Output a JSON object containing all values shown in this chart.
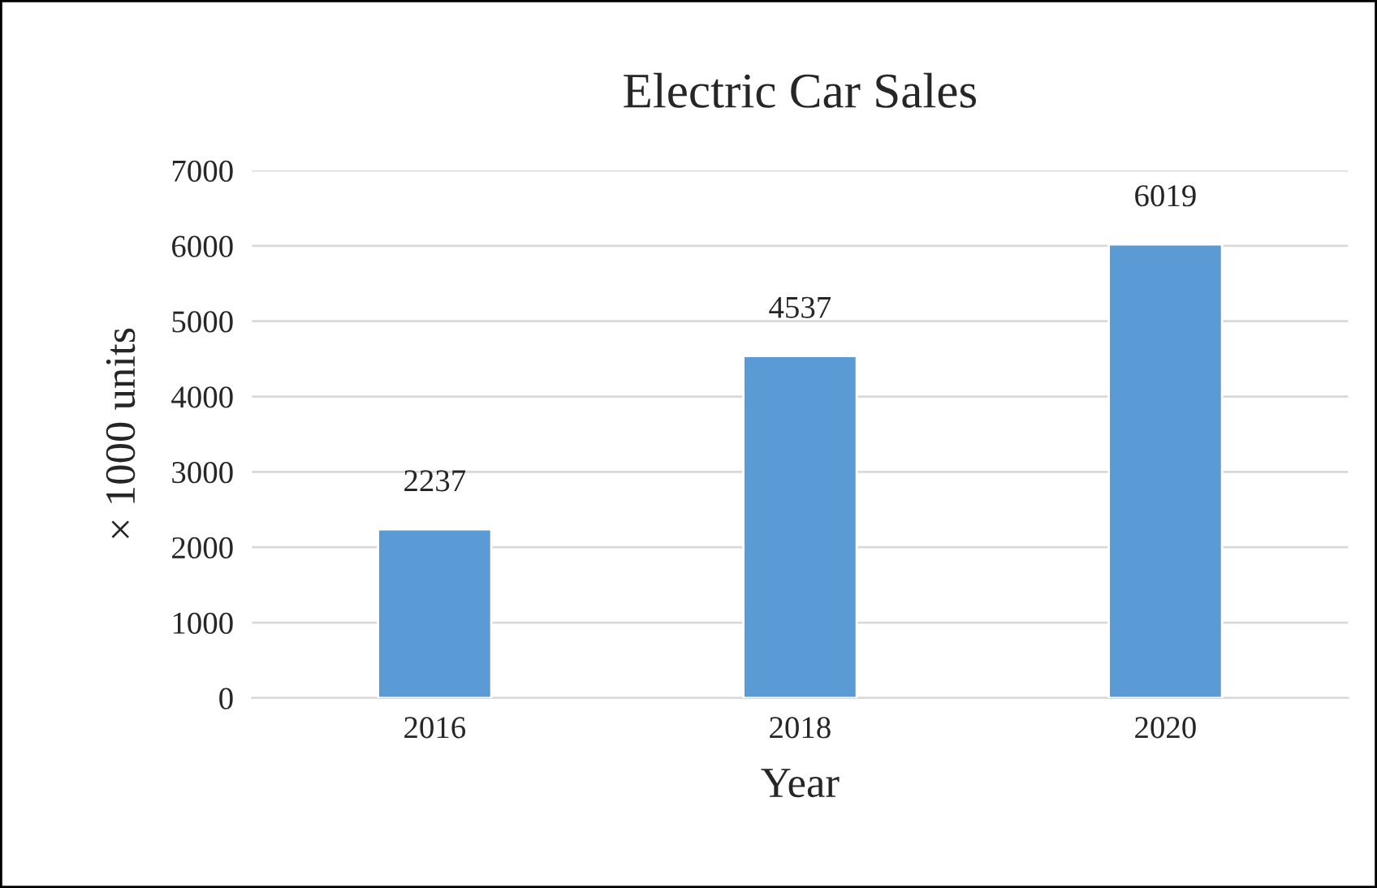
{
  "chart_data": {
    "type": "bar",
    "title": "Electric Car Sales",
    "xlabel": "Year",
    "ylabel": "× 1000 units",
    "categories": [
      "2016",
      "2018",
      "2020"
    ],
    "values": [
      2237,
      4537,
      6019
    ],
    "color": "#5b9bd5",
    "ylim": [
      0,
      7000
    ],
    "yticks": [
      0,
      1000,
      2000,
      3000,
      4000,
      5000,
      6000,
      7000
    ],
    "grid": "y",
    "data_labels": true
  }
}
